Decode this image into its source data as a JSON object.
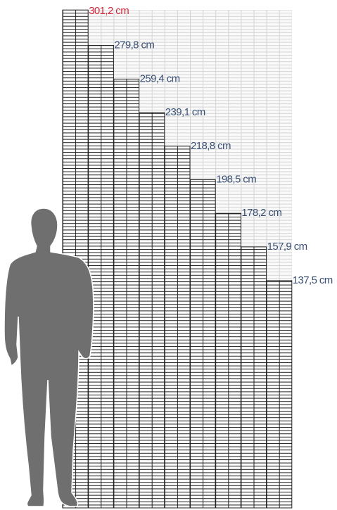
{
  "chart_data": {
    "type": "bar",
    "values": [
      301.2,
      279.8,
      259.4,
      239.1,
      218.8,
      198.5,
      178.2,
      157.9,
      137.5
    ],
    "value_labels": [
      "301,2 cm",
      "279,8 cm",
      "259,4 cm",
      "239,1 cm",
      "218,8 cm",
      "198,5 cm",
      "178,2 cm",
      "157,9 cm",
      "137,5 cm"
    ],
    "colors": [
      "#d0293c",
      "#3a5075",
      "#3a5075",
      "#3a5075",
      "#3a5075",
      "#3a5075",
      "#3a5075",
      "#3a5075",
      "#3a5075"
    ]
  }
}
